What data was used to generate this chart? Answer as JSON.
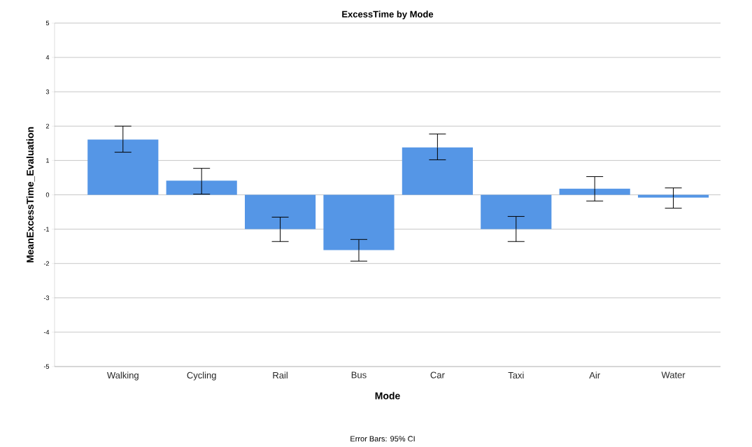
{
  "chart_data": {
    "type": "bar",
    "title": "ExcessTime by Mode",
    "xlabel": "Mode",
    "ylabel": "MeanExcessTime_Evaluation",
    "categories": [
      "Walking",
      "Cycling",
      "Rail",
      "Bus",
      "Car",
      "Taxi",
      "Air",
      "Water"
    ],
    "values": [
      1.61,
      0.41,
      -1.0,
      -1.61,
      1.38,
      -1.0,
      0.18,
      -0.08
    ],
    "errors": [
      [
        1.24,
        2.0
      ],
      [
        0.02,
        0.77
      ],
      [
        -1.36,
        -0.65
      ],
      [
        -1.93,
        -1.3
      ],
      [
        1.02,
        1.77
      ],
      [
        -1.36,
        -0.63
      ],
      [
        -0.18,
        0.53
      ],
      [
        -0.39,
        0.2
      ]
    ],
    "color": "#5596e6",
    "ylim": [
      -5,
      5
    ],
    "yticks": [
      -5,
      -4,
      -3,
      -2,
      -1,
      0,
      1,
      2,
      3,
      4,
      5
    ],
    "grid": "y",
    "annotations": [
      "Error Bars: 95% CI"
    ]
  }
}
